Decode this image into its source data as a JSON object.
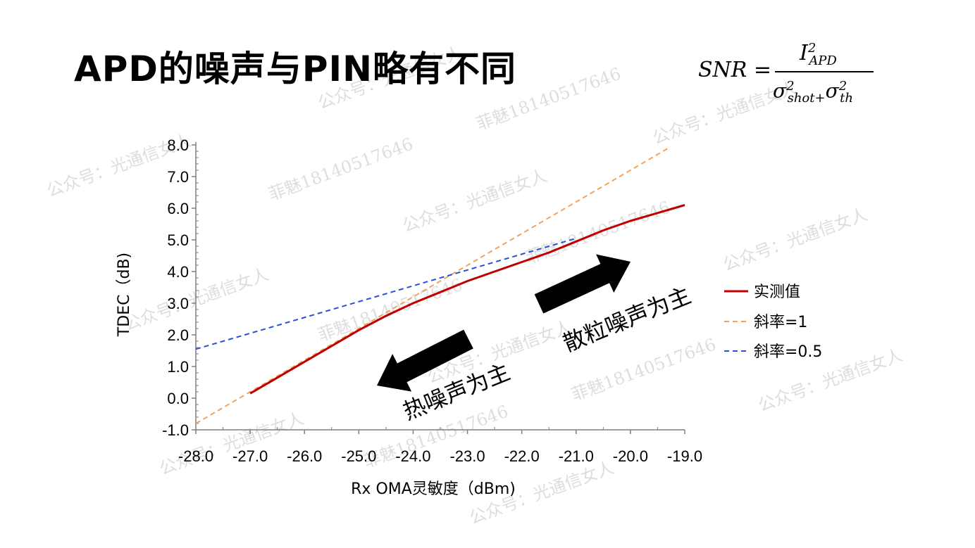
{
  "slide": {
    "title": "APD的噪声与PIN略有不同",
    "formula": {
      "lhs": "SNR =",
      "numerator": "I",
      "numerator_sup": "2",
      "numerator_sub": "APD",
      "denominator_part1": "σ",
      "denominator_part1_sup": "2",
      "denominator_part1_sub": "shot+",
      "denominator_part2": "σ",
      "denominator_part2_sup": "2",
      "denominator_part2_sub": "th"
    }
  },
  "chart_data": {
    "type": "line",
    "xlabel": "Rx OMA灵敏度（dBm)",
    "ylabel": "TDEC（dB)",
    "xlim": [
      -28.0,
      -19.0
    ],
    "ylim": [
      -1.0,
      8.0
    ],
    "x_ticks": [
      -28.0,
      -27.0,
      -26.0,
      -25.0,
      -24.0,
      -23.0,
      -22.0,
      -21.0,
      -20.0,
      -19.0
    ],
    "y_ticks": [
      -1.0,
      0.0,
      1.0,
      2.0,
      3.0,
      4.0,
      5.0,
      6.0,
      7.0,
      8.0
    ],
    "x_tick_labels": [
      "-28.0",
      "-27.0",
      "-26.0",
      "-25.0",
      "-24.0",
      "-23.0",
      "-22.0",
      "-21.0",
      "-20.0",
      "-19.0"
    ],
    "y_tick_labels": [
      "-1.0",
      "0.0",
      "1.0",
      "2.0",
      "3.0",
      "4.0",
      "5.0",
      "6.0",
      "7.0",
      "8.0"
    ],
    "grid": false,
    "legend_position": "right",
    "series": [
      {
        "name": "实测值",
        "color": "#c00000",
        "style": "solid",
        "x": [
          -27.0,
          -26.5,
          -26.0,
          -25.5,
          -25.0,
          -24.5,
          -24.0,
          -23.5,
          -23.0,
          -22.5,
          -22.0,
          -21.5,
          -21.0,
          -20.5,
          -20.0,
          -19.5,
          -19.0
        ],
        "y": [
          0.15,
          0.65,
          1.15,
          1.65,
          2.15,
          2.6,
          3.0,
          3.35,
          3.7,
          4.0,
          4.3,
          4.6,
          4.95,
          5.3,
          5.6,
          5.85,
          6.1
        ]
      },
      {
        "name": "斜率=1",
        "color": "#f4a15d",
        "style": "dashed",
        "x": [
          -28.0,
          -19.3
        ],
        "y": [
          -0.8,
          7.9
        ]
      },
      {
        "name": "斜率=0.5",
        "color": "#2b4fd8",
        "style": "dashed",
        "x": [
          -28.0,
          -21.0
        ],
        "y": [
          1.55,
          5.05
        ]
      }
    ],
    "annotations": [
      {
        "text": "热噪声为主",
        "arrow_direction": "down-left"
      },
      {
        "text": "散粒噪声为主",
        "arrow_direction": "up-right"
      }
    ]
  },
  "watermarks": [
    "公众号：光通信女人",
    "菲魅18140517646"
  ]
}
